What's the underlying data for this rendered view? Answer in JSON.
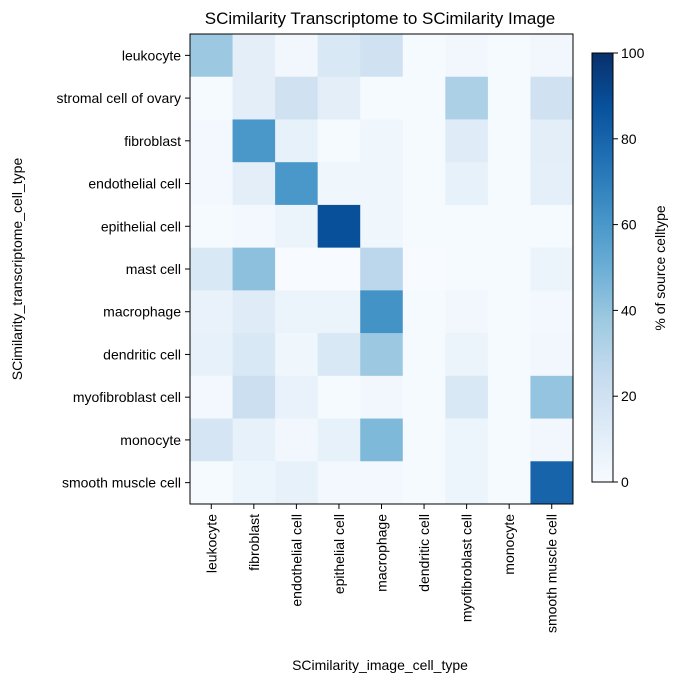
{
  "chart_data": {
    "type": "heatmap",
    "title": "SCimilarity Transcriptome to SCimilarity Image",
    "xlabel": "SCimilarity_image_cell_type",
    "ylabel": "SCimilarity_transcriptome_cell_type",
    "x_categories": [
      "leukocyte",
      "fibroblast",
      "endothelial cell",
      "epithelial cell",
      "macrophage",
      "dendritic cell",
      "myofibroblast cell",
      "monocyte",
      "smooth muscle cell"
    ],
    "y_categories": [
      "leukocyte",
      "stromal cell of ovary",
      "fibroblast",
      "endothelial cell",
      "epithelial cell",
      "mast cell",
      "macrophage",
      "dendritic cell",
      "myofibroblast cell",
      "monocyte",
      "smooth muscle cell"
    ],
    "values": [
      [
        38,
        10,
        3,
        15,
        20,
        1,
        3,
        1,
        3
      ],
      [
        1,
        10,
        20,
        10,
        1,
        1,
        33,
        1,
        20
      ],
      [
        2,
        60,
        8,
        1,
        4,
        1,
        12,
        1,
        10
      ],
      [
        2,
        10,
        60,
        4,
        4,
        1,
        8,
        1,
        9
      ],
      [
        1,
        2,
        6,
        88,
        4,
        1,
        1,
        1,
        1
      ],
      [
        15,
        42,
        0,
        0,
        28,
        0,
        1,
        1,
        6
      ],
      [
        7,
        12,
        6,
        6,
        62,
        1,
        3,
        1,
        2
      ],
      [
        8,
        15,
        4,
        15,
        38,
        1,
        6,
        1,
        3
      ],
      [
        2,
        22,
        7,
        1,
        3,
        1,
        15,
        1,
        40
      ],
      [
        17,
        8,
        3,
        8,
        45,
        1,
        5,
        1,
        3
      ],
      [
        1,
        5,
        8,
        2,
        2,
        1,
        5,
        1,
        80
      ]
    ],
    "colorbar": {
      "label": "% of source celltype",
      "range": [
        0,
        100
      ],
      "ticks": [
        "0",
        "20",
        "40",
        "60",
        "80",
        "100"
      ],
      "colormap": "Blues"
    }
  }
}
